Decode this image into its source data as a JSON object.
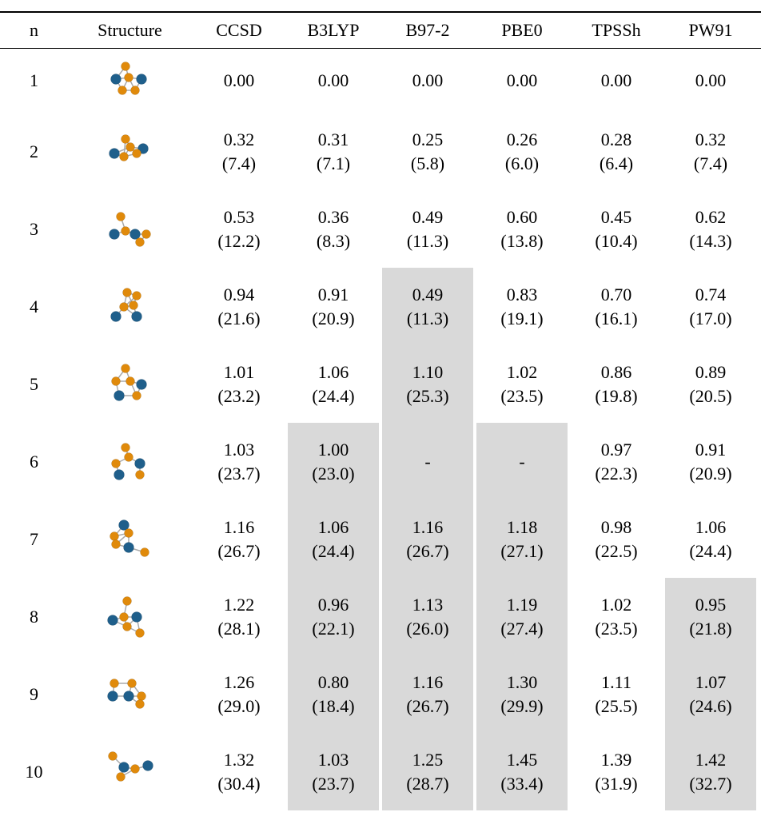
{
  "table": {
    "header": [
      "n",
      "Structure",
      "CCSD",
      "B3LYP",
      "B97-2",
      "PBE0",
      "TPSSh",
      "PW91"
    ],
    "rows": [
      {
        "n": "1",
        "cells": [
          [
            "0.00"
          ],
          [
            "0.00"
          ],
          [
            "0.00"
          ],
          [
            "0.00"
          ],
          [
            "0.00"
          ],
          [
            "0.00"
          ]
        ]
      },
      {
        "n": "2",
        "cells": [
          [
            "0.32",
            "(7.4)"
          ],
          [
            "0.31",
            "(7.1)"
          ],
          [
            "0.25",
            "(5.8)"
          ],
          [
            "0.26",
            "(6.0)"
          ],
          [
            "0.28",
            "(6.4)"
          ],
          [
            "0.32",
            "(7.4)"
          ]
        ]
      },
      {
        "n": "3",
        "cells": [
          [
            "0.53",
            "(12.2)"
          ],
          [
            "0.36",
            "(8.3)"
          ],
          [
            "0.49",
            "(11.3)"
          ],
          [
            "0.60",
            "(13.8)"
          ],
          [
            "0.45",
            "(10.4)"
          ],
          [
            "0.62",
            "(14.3)"
          ]
        ]
      },
      {
        "n": "4",
        "cells": [
          [
            "0.94",
            "(21.6)"
          ],
          [
            "0.91",
            "(20.9)"
          ],
          [
            "0.49",
            "(11.3)"
          ],
          [
            "0.83",
            "(19.1)"
          ],
          [
            "0.70",
            "(16.1)"
          ],
          [
            "0.74",
            "(17.0)"
          ]
        ]
      },
      {
        "n": "5",
        "cells": [
          [
            "1.01",
            "(23.2)"
          ],
          [
            "1.06",
            "(24.4)"
          ],
          [
            "1.10",
            "(25.3)"
          ],
          [
            "1.02",
            "(23.5)"
          ],
          [
            "0.86",
            "(19.8)"
          ],
          [
            "0.89",
            "(20.5)"
          ]
        ]
      },
      {
        "n": "6",
        "cells": [
          [
            "1.03",
            "(23.7)"
          ],
          [
            "1.00",
            "(23.0)"
          ],
          [
            "-"
          ],
          [
            "-"
          ],
          [
            "0.97",
            "(22.3)"
          ],
          [
            "0.91",
            "(20.9)"
          ]
        ]
      },
      {
        "n": "7",
        "cells": [
          [
            "1.16",
            "(26.7)"
          ],
          [
            "1.06",
            "(24.4)"
          ],
          [
            "1.16",
            "(26.7)"
          ],
          [
            "1.18",
            "(27.1)"
          ],
          [
            "0.98",
            "(22.5)"
          ],
          [
            "1.06",
            "(24.4)"
          ]
        ]
      },
      {
        "n": "8",
        "cells": [
          [
            "1.22",
            "(28.1)"
          ],
          [
            "0.96",
            "(22.1)"
          ],
          [
            "1.13",
            "(26.0)"
          ],
          [
            "1.19",
            "(27.4)"
          ],
          [
            "1.02",
            "(23.5)"
          ],
          [
            "0.95",
            "(21.8)"
          ]
        ]
      },
      {
        "n": "9",
        "cells": [
          [
            "1.26",
            "(29.0)"
          ],
          [
            "0.80",
            "(18.4)"
          ],
          [
            "1.16",
            "(26.7)"
          ],
          [
            "1.30",
            "(29.9)"
          ],
          [
            "1.11",
            "(25.5)"
          ],
          [
            "1.07",
            "(24.6)"
          ]
        ]
      },
      {
        "n": "10",
        "cells": [
          [
            "1.32",
            "(30.4)"
          ],
          [
            "1.03",
            "(23.7)"
          ],
          [
            "1.25",
            "(28.7)"
          ],
          [
            "1.45",
            "(33.4)"
          ],
          [
            "1.39",
            "(31.9)"
          ],
          [
            "1.42",
            "(32.7)"
          ]
        ]
      }
    ]
  }
}
